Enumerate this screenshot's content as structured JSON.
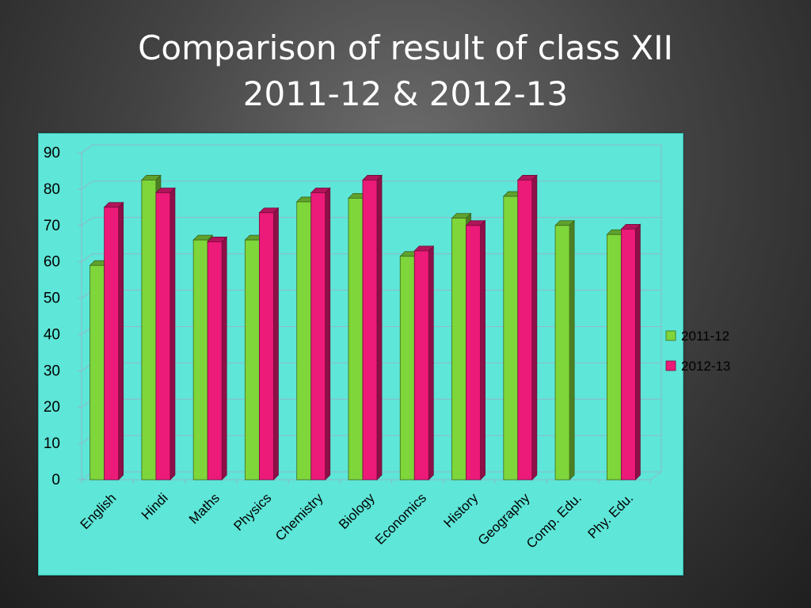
{
  "title": {
    "line1": "Comparison of result of class XII",
    "line2": "2011-12 & 2012-13"
  },
  "colors": {
    "panel": "#5ee6d8",
    "series_2011": "#7ed63a",
    "series_2012": "#ec1a78",
    "grid": "#8fb8c8"
  },
  "chart_data": {
    "type": "bar",
    "title": "Comparison of result of class XII 2011-12 & 2012-13",
    "xlabel": "",
    "ylabel": "",
    "ylim": [
      0,
      90
    ],
    "yticks": [
      0,
      10,
      20,
      30,
      40,
      50,
      60,
      70,
      80,
      90
    ],
    "grid": true,
    "legend_position": "right",
    "categories": [
      "English",
      "Hindi",
      "Maths",
      "Physics",
      "Chemistry",
      "Biology",
      "Economics",
      "History",
      "Geography",
      "Comp. Edu.",
      "Phy. Edu."
    ],
    "series": [
      {
        "name": "2011-12",
        "values": [
          59,
          82.5,
          66,
          66,
          76.5,
          77.5,
          61.5,
          72,
          78,
          70,
          67.5
        ]
      },
      {
        "name": "2012-13",
        "values": [
          75,
          79,
          65.5,
          73.5,
          79,
          82.5,
          63,
          70,
          82.5,
          null,
          69
        ]
      }
    ]
  }
}
